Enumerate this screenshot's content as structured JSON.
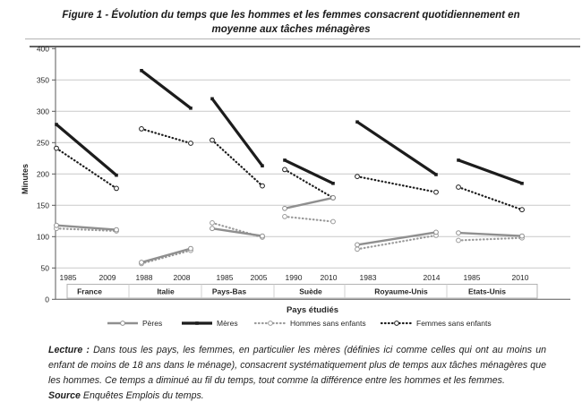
{
  "figure": {
    "title_line1": "Figure 1 - Évolution du temps que les hommes et les femmes consacrent quotidiennement en",
    "title_line2": "moyenne aux tâches ménagères"
  },
  "chart_data": {
    "type": "line",
    "title": "Figure 1 - Évolution du temps que les hommes et les femmes consacrent quotidiennement en moyenne aux tâches ménagères",
    "ylabel": "Minutes",
    "xlabel": "Pays étudiés",
    "ylim": [
      0,
      400
    ],
    "ytick_step": 50,
    "grid": true,
    "legend_position": "bottom",
    "colors": {
      "dark_series": "#1c1c1c",
      "gray_series": "#8f8f8f",
      "gridline": "#c9c9c9"
    },
    "series": [
      {
        "name": "Pères",
        "key": "peres",
        "style": "solid",
        "color": "#8f8f8f",
        "width": 2.4
      },
      {
        "name": "Mères",
        "key": "meres",
        "style": "solid",
        "color": "#1c1c1c",
        "width": 3.2
      },
      {
        "name": "Hommes sans enfants",
        "key": "hommes_sans_enfants",
        "style": "dotted",
        "color": "#9a9a9a",
        "width": 2.2
      },
      {
        "name": "Femmes sans enfants",
        "key": "femmes_sans_enfants",
        "style": "dotted",
        "color": "#1c1c1c",
        "width": 2.2
      }
    ],
    "countries": [
      {
        "name": "France",
        "years": [
          "1985",
          "2009"
        ],
        "values": {
          "peres": [
            118,
            111
          ],
          "meres": [
            279,
            198
          ],
          "hommes_sans_enfants": [
            113,
            109
          ],
          "femmes_sans_enfants": [
            241,
            177
          ]
        }
      },
      {
        "name": "Italie",
        "years": [
          "1988",
          "2008"
        ],
        "values": {
          "peres": [
            59,
            81
          ],
          "meres": [
            365,
            305
          ],
          "hommes_sans_enfants": [
            57,
            78
          ],
          "femmes_sans_enfants": [
            272,
            249
          ]
        }
      },
      {
        "name": "Pays-Bas",
        "years": [
          "1985",
          "2005"
        ],
        "values": {
          "peres": [
            113,
            101
          ],
          "meres": [
            320,
            213
          ],
          "hommes_sans_enfants": [
            122,
            99
          ],
          "femmes_sans_enfants": [
            254,
            181
          ]
        }
      },
      {
        "name": "Suède",
        "years": [
          "1990",
          "2010"
        ],
        "values": {
          "peres": [
            145,
            162
          ],
          "meres": [
            222,
            185
          ],
          "hommes_sans_enfants": [
            132,
            124
          ],
          "femmes_sans_enfants": [
            207,
            162
          ]
        }
      },
      {
        "name": "Royaume-Unis",
        "years": [
          "1983",
          "2014"
        ],
        "values": {
          "peres": [
            87,
            107
          ],
          "meres": [
            283,
            199
          ],
          "hommes_sans_enfants": [
            80,
            102
          ],
          "femmes_sans_enfants": [
            196,
            171
          ]
        }
      },
      {
        "name": "Etats-Unis",
        "years": [
          "1985",
          "2010"
        ],
        "values": {
          "peres": [
            106,
            101
          ],
          "meres": [
            222,
            185
          ],
          "hommes_sans_enfants": [
            94,
            98
          ],
          "femmes_sans_enfants": [
            179,
            143
          ]
        }
      }
    ]
  },
  "notes": {
    "lecture_label": "Lecture :",
    "lecture_text": "Dans tous les pays, les femmes, en particulier les mères (définies ici comme celles qui ont au moins un enfant de moins de 18 ans dans le ménage), consacrent systématiquement plus de temps aux tâches ménagères que les hommes. Ce temps a diminué au fil du temps, tout comme la différence entre les hommes et les femmes.",
    "source_label": "Source",
    "source_text": "Enquêtes Emplois du temps."
  }
}
